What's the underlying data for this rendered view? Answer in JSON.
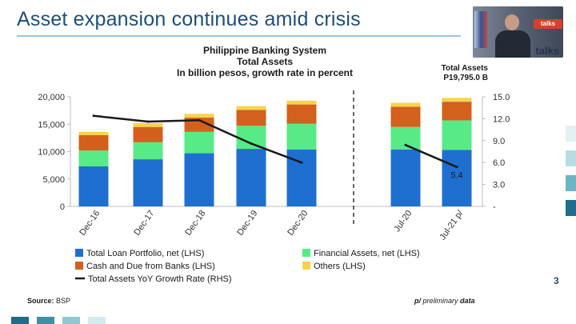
{
  "slide": {
    "title": "Asset expansion continues amid crisis",
    "number": "3",
    "source_label": "Source:",
    "source_value": "BSP",
    "prelim_mark": "p/",
    "prelim_text": "preliminary",
    "prelim_bold": "data"
  },
  "video": {
    "badge": "talks",
    "watermark": "talks",
    "icon": "presenter-video-thumbnail"
  },
  "total_assets": {
    "label": "Total Assets",
    "value": "P19,795.0 B"
  },
  "colors": {
    "loan": "#1f6fd1",
    "financial": "#57ea86",
    "cash": "#d4601e",
    "others": "#f6d44a",
    "growth": "#1a1a1a",
    "title": "#1f4e79"
  },
  "chart_data": {
    "type": "bar",
    "stacked": true,
    "title": [
      "Philippine Banking System",
      "Total Assets",
      "In billion pesos, growth rate in percent"
    ],
    "categories": [
      "Dec-16",
      "Dec-17",
      "Dec-18",
      "Dec-19",
      "Dec-20",
      "Jul-20",
      "Jul-21 p/"
    ],
    "series": [
      {
        "name": "Total Loan Portfolio, net (LHS)",
        "color": "#1f6fd1",
        "values": [
          7300,
          8600,
          9700,
          10500,
          10400,
          10400,
          10300
        ]
      },
      {
        "name": "Financial Assets, net (LHS)",
        "color": "#57ea86",
        "values": [
          2900,
          3100,
          3900,
          4200,
          4700,
          4100,
          5400
        ]
      },
      {
        "name": "Cash and Due from Banks (LHS)",
        "color": "#d4601e",
        "values": [
          2800,
          2800,
          2600,
          2900,
          3500,
          3700,
          3400
        ]
      },
      {
        "name": "Others (LHS)",
        "color": "#f6d44a",
        "values": [
          600,
          700,
          700,
          700,
          700,
          700,
          700
        ]
      }
    ],
    "line_series": [
      {
        "name": "Total Assets YoY Growth Rate (RHS)",
        "color": "#1a1a1a",
        "axis": "right",
        "segments": [
          {
            "categories": [
              "Dec-16",
              "Dec-17",
              "Dec-18",
              "Dec-19",
              "Dec-20"
            ],
            "values": [
              12.4,
              11.6,
              11.8,
              8.6,
              6.0
            ]
          },
          {
            "categories": [
              "Jul-20",
              "Jul-21 p/"
            ],
            "values": [
              8.4,
              5.4
            ]
          }
        ]
      }
    ],
    "data_labels": [
      {
        "category": "Jul-21 p/",
        "text": "5.4"
      }
    ],
    "y_left": {
      "ylim": [
        0,
        20000
      ],
      "ticks": [
        0,
        5000,
        10000,
        15000,
        20000
      ],
      "tick_labels": [
        "0",
        "5,000",
        "10,000",
        "15,000",
        "20,000"
      ]
    },
    "y_right": {
      "ylim": [
        0,
        15
      ],
      "ticks": [
        0,
        3,
        6,
        9,
        12,
        15
      ],
      "tick_labels": [
        "-",
        "3.0",
        "6.0",
        "9.0",
        "12.0",
        "15.0"
      ]
    },
    "grid": false,
    "legend": "bottom",
    "separator_after": "Dec-20"
  }
}
